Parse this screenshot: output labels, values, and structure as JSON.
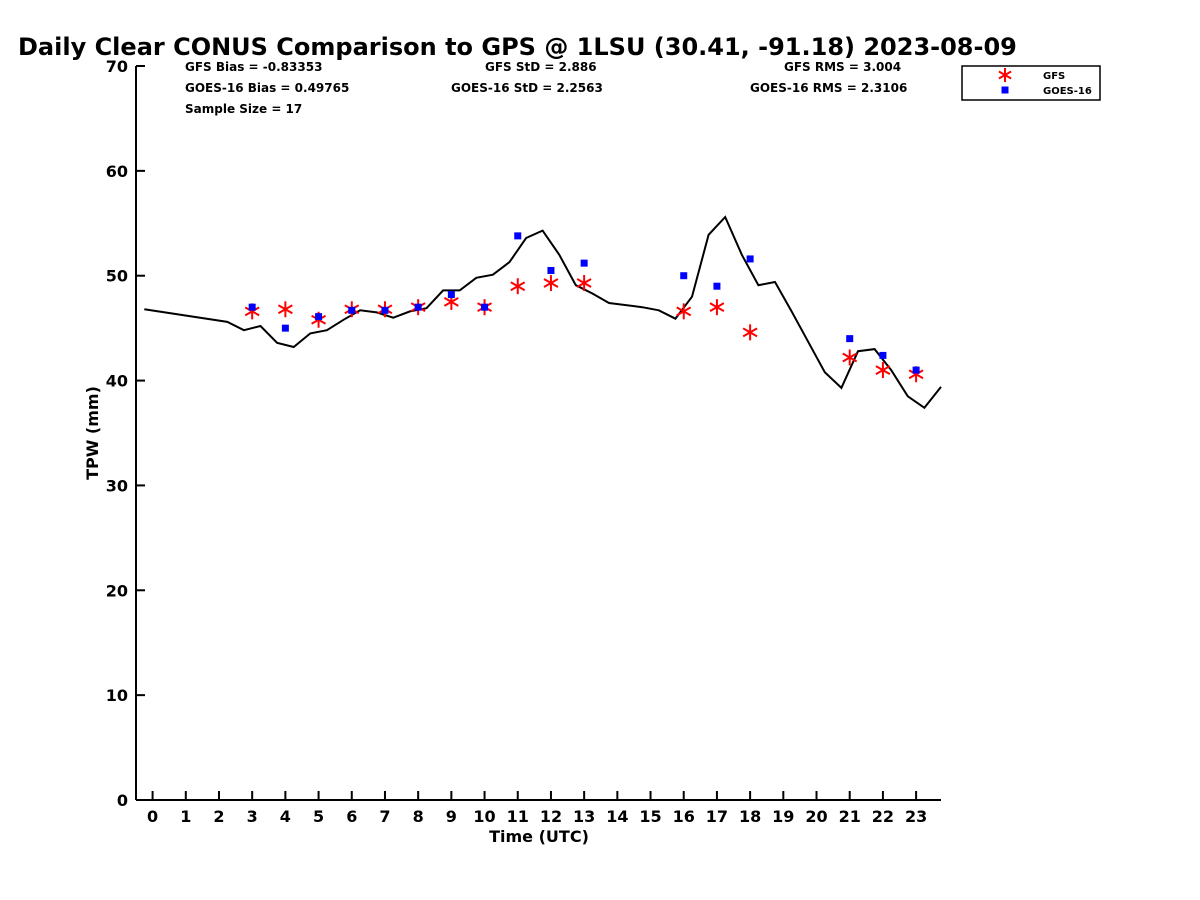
{
  "chart_data": {
    "type": "line",
    "title": "Daily Clear CONUS Comparison to GPS @ 1LSU (30.41, -91.18) 2023-08-09",
    "xlabel": "Time (UTC)",
    "ylabel": "TPW (mm)",
    "xlim": [
      -0.5,
      23.75
    ],
    "ylim": [
      0,
      70
    ],
    "x_ticks": [
      "0",
      "1",
      "2",
      "3",
      "4",
      "5",
      "6",
      "7",
      "8",
      "9",
      "10",
      "11",
      "12",
      "13",
      "14",
      "15",
      "16",
      "17",
      "18",
      "19",
      "20",
      "21",
      "22",
      "23"
    ],
    "y_ticks": [
      "0",
      "10",
      "20",
      "30",
      "40",
      "50",
      "60",
      "70"
    ],
    "grid": false,
    "legend_position": "top-right",
    "stats": {
      "gfs_bias": "GFS Bias = -0.83353",
      "goes_bias": "GOES-16 Bias = 0.49765",
      "sample_size": "Sample Size = 17",
      "gfs_std": "GFS StD = 2.886",
      "goes_std": "GOES-16 StD = 2.2563",
      "gfs_rms": "GFS RMS = 3.004",
      "goes_rms": "GOES-16 RMS = 2.3106"
    },
    "gps_line": {
      "x": [
        -0.25,
        2.25,
        2.75,
        3.25,
        3.75,
        4.25,
        4.75,
        5.25,
        5.75,
        6.25,
        6.75,
        7.25,
        7.75,
        8.25,
        8.75,
        9.25,
        9.75,
        10.25,
        10.75,
        11.25,
        11.75,
        12.25,
        12.75,
        13.25,
        13.75,
        14.75,
        15.25,
        15.75,
        16.25,
        16.75,
        17.25,
        17.75,
        18.25,
        18.75,
        19.25,
        19.75,
        20.25,
        20.75,
        21.25,
        21.75,
        22.25,
        22.75,
        23.25,
        23.75
      ],
      "y": [
        46.8,
        45.6,
        44.8,
        45.2,
        43.6,
        43.2,
        44.5,
        44.8,
        45.8,
        46.7,
        46.5,
        46.0,
        46.6,
        46.9,
        48.6,
        48.6,
        49.8,
        50.1,
        51.3,
        53.6,
        54.3,
        52.0,
        49.1,
        48.3,
        47.4,
        47.0,
        46.7,
        45.9,
        48.0,
        53.9,
        55.6,
        52.0,
        49.1,
        49.4,
        46.6,
        43.7,
        40.8,
        39.3,
        42.8,
        43.0,
        41.0,
        38.5,
        37.4,
        39.4
      ]
    },
    "series": [
      {
        "name": "GFS",
        "marker": "asterisk",
        "color": "#ff0000",
        "x": [
          3,
          4,
          5,
          6,
          7,
          8,
          9,
          10,
          11,
          12,
          13,
          16,
          17,
          18,
          21,
          22,
          23
        ],
        "values": [
          46.6,
          46.8,
          45.8,
          46.8,
          46.8,
          47.0,
          47.5,
          47.0,
          49.0,
          49.3,
          49.3,
          46.6,
          47.0,
          44.6,
          42.2,
          41.0,
          40.6
        ]
      },
      {
        "name": "GOES-16",
        "marker": "square",
        "color": "#0000ff",
        "x": [
          3,
          4,
          5,
          6,
          7,
          8,
          9,
          10,
          11,
          12,
          13,
          16,
          17,
          18,
          21,
          22,
          23
        ],
        "values": [
          47.0,
          45.0,
          46.1,
          46.7,
          46.7,
          47.0,
          48.2,
          47.0,
          53.8,
          50.5,
          51.2,
          50.0,
          49.0,
          51.6,
          44.0,
          42.4,
          41.0
        ]
      }
    ]
  }
}
